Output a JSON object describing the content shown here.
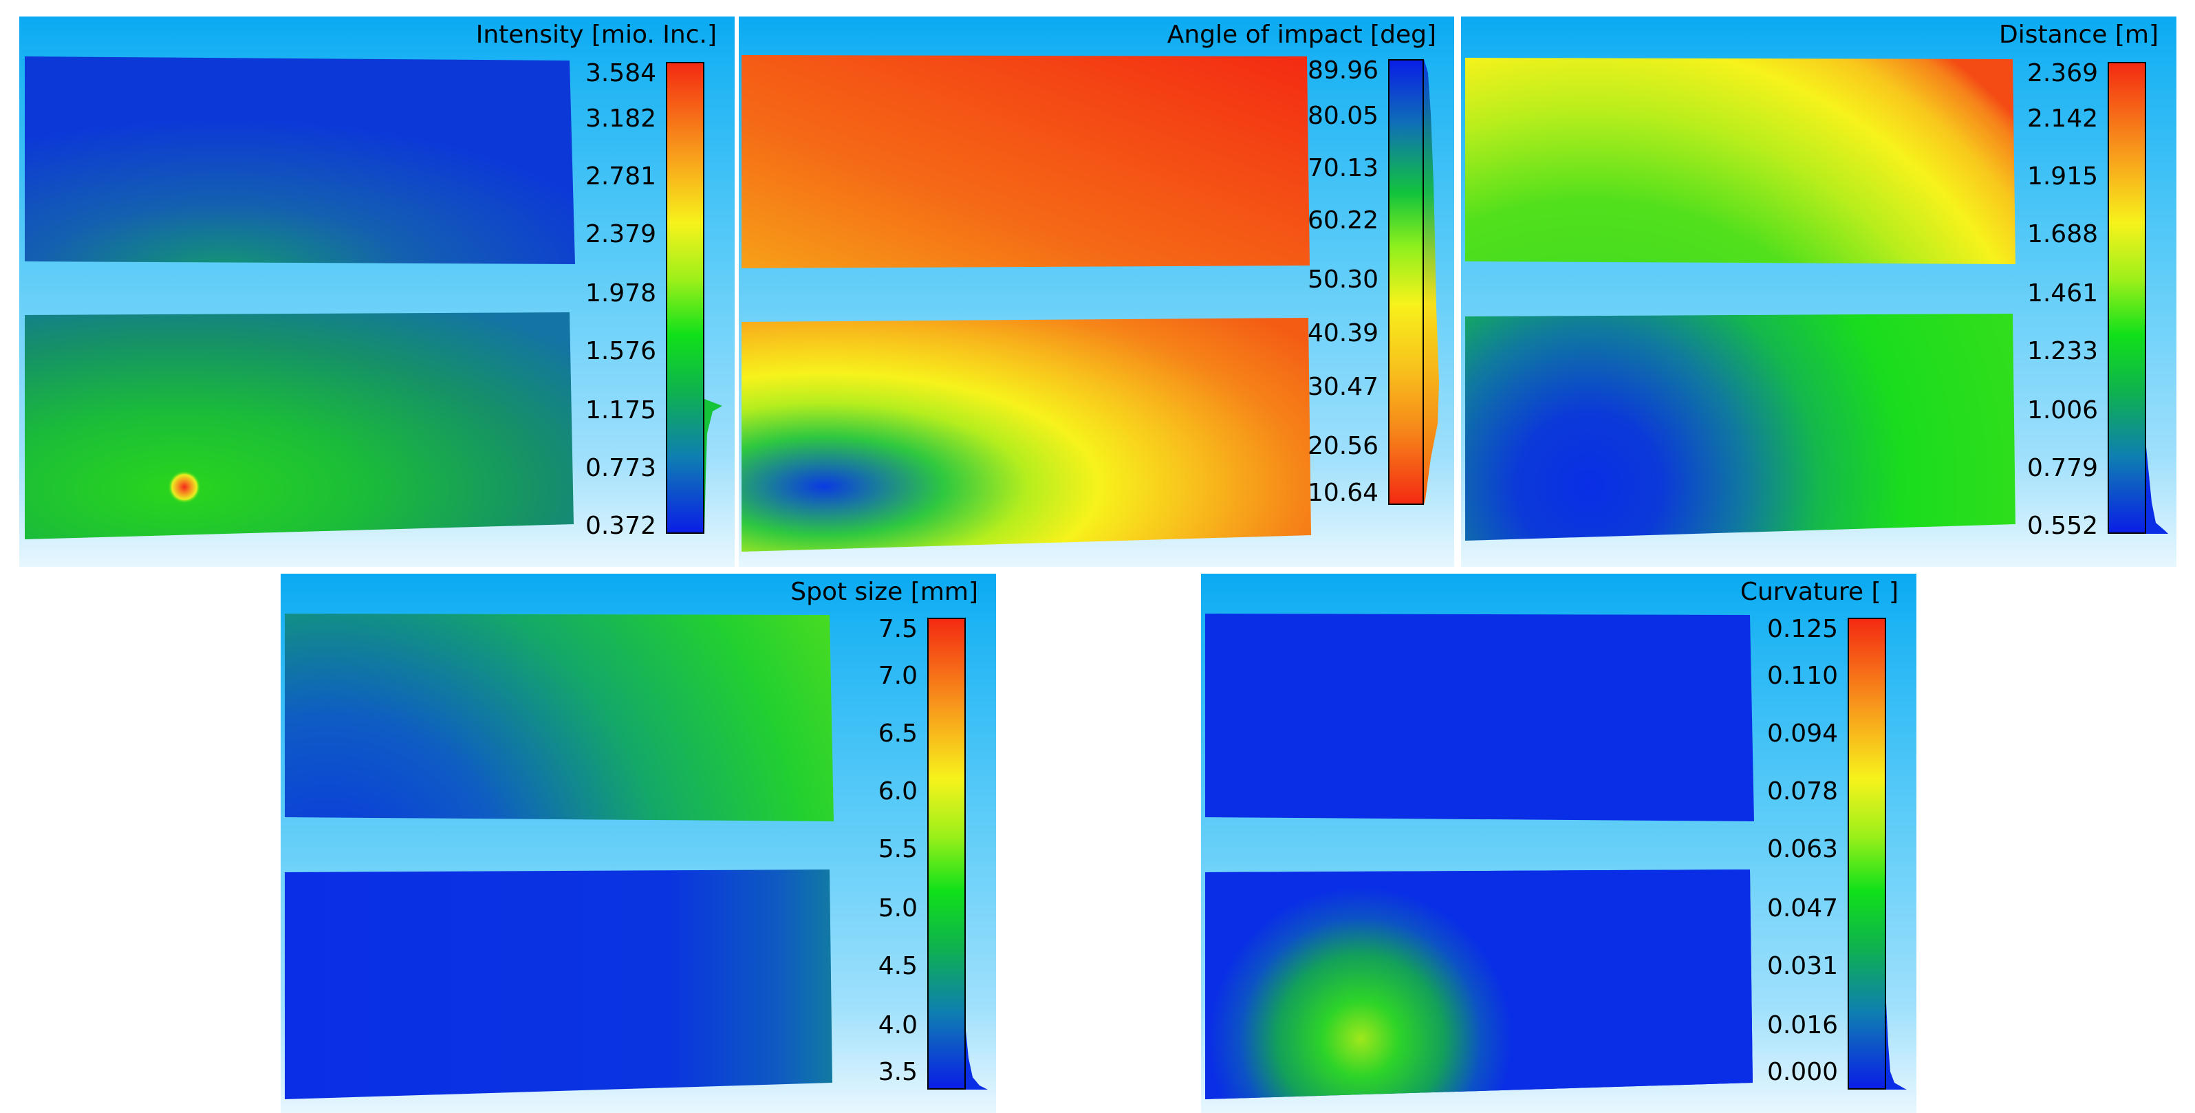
{
  "colors": {
    "frame_top": "#0aaaf2",
    "frame_bottom": "#e8f7fe",
    "scale_blue": "#0a1ee6",
    "scale_green": "#0ee01a",
    "scale_yellow": "#f7f21c",
    "scale_red": "#f42a12"
  },
  "chart_data": [
    {
      "id": "intensity",
      "type": "heatmap",
      "title": "Intensity [mio. Inc.]",
      "colorbar_orientation": "low-blue-bottom",
      "vmin": 0.372,
      "vmax": 3.584,
      "ticks": [
        "3.584",
        "3.182",
        "2.781",
        "2.379",
        "1.978",
        "1.576",
        "1.175",
        "0.773",
        "0.372"
      ],
      "surfaces": [
        "upper plate",
        "lower plate"
      ],
      "note": "Dark blue upper plate; lower plate green with a red hotspot near the lower-left"
    },
    {
      "id": "angle",
      "type": "heatmap",
      "title": "Angle of impact [deg]",
      "colorbar_orientation": "high-blue-top",
      "vmin": 10.64,
      "vmax": 89.96,
      "ticks": [
        "89.96",
        "80.05",
        "70.13",
        "60.22",
        "50.30",
        "40.39",
        "30.47",
        "20.56",
        "10.64"
      ],
      "surfaces": [
        "upper plate",
        "lower plate"
      ],
      "note": "Upper plate orange-red; lower plate blue spot near lower-left fading to yellow and orange"
    },
    {
      "id": "distance",
      "type": "heatmap",
      "title": "Distance [m]",
      "colorbar_orientation": "low-blue-bottom",
      "vmin": 0.552,
      "vmax": 2.369,
      "ticks": [
        "2.369",
        "2.142",
        "1.915",
        "1.688",
        "1.461",
        "1.233",
        "1.006",
        "0.779",
        "0.552"
      ],
      "surfaces": [
        "upper plate",
        "lower plate"
      ],
      "note": "Concentric rings centered near lower-left of lower plate"
    },
    {
      "id": "spot",
      "type": "heatmap",
      "title": "Spot size [mm]",
      "colorbar_orientation": "low-blue-bottom",
      "vmin": 3.5,
      "vmax": 7.5,
      "ticks": [
        "7.5",
        "7.0",
        "6.5",
        "6.0",
        "5.5",
        "5.0",
        "4.5",
        "4.0",
        "3.5"
      ],
      "surfaces": [
        "upper plate",
        "lower plate"
      ],
      "note": "Mostly blue; upper plate greener toward upper-right"
    },
    {
      "id": "curvature",
      "type": "heatmap",
      "title": "Curvature [ ]",
      "colorbar_orientation": "low-blue-bottom",
      "vmin": 0.0,
      "vmax": 0.125,
      "ticks": [
        "0.125",
        "0.110",
        "0.094",
        "0.078",
        "0.063",
        "0.047",
        "0.031",
        "0.016",
        "0.000"
      ],
      "surfaces": [
        "upper plate",
        "lower plate"
      ],
      "note": "Almost uniformly blue; green noisy blob in lower-left of lower plate"
    }
  ]
}
